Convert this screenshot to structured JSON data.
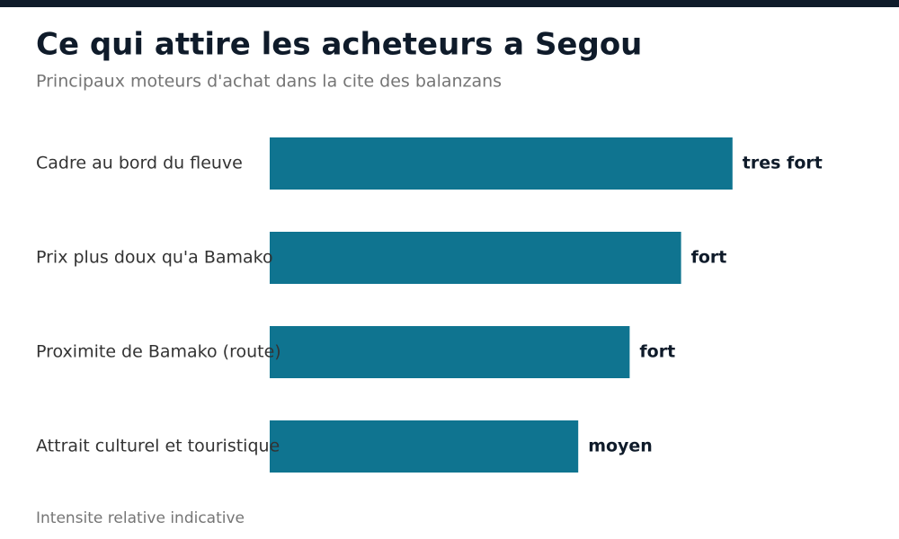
{
  "chart_data": {
    "type": "hbar",
    "title": "Ce qui attire les acheteurs a Segou",
    "subtitle": "Principaux moteurs d'achat dans la cite des balanzans",
    "note": "Intensite relative indicative",
    "categories": [
      "Cadre au bord du fleuve",
      "Prix plus doux qu'a Bamako",
      "Proximite de Bamako (route)",
      "Attrait culturel et touristique"
    ],
    "values": [
      90,
      80,
      70,
      60
    ],
    "value_labels": [
      "tres fort",
      "fort",
      "fort",
      "moyen"
    ],
    "color": "#0f7490",
    "xlim": [
      0,
      100
    ]
  }
}
